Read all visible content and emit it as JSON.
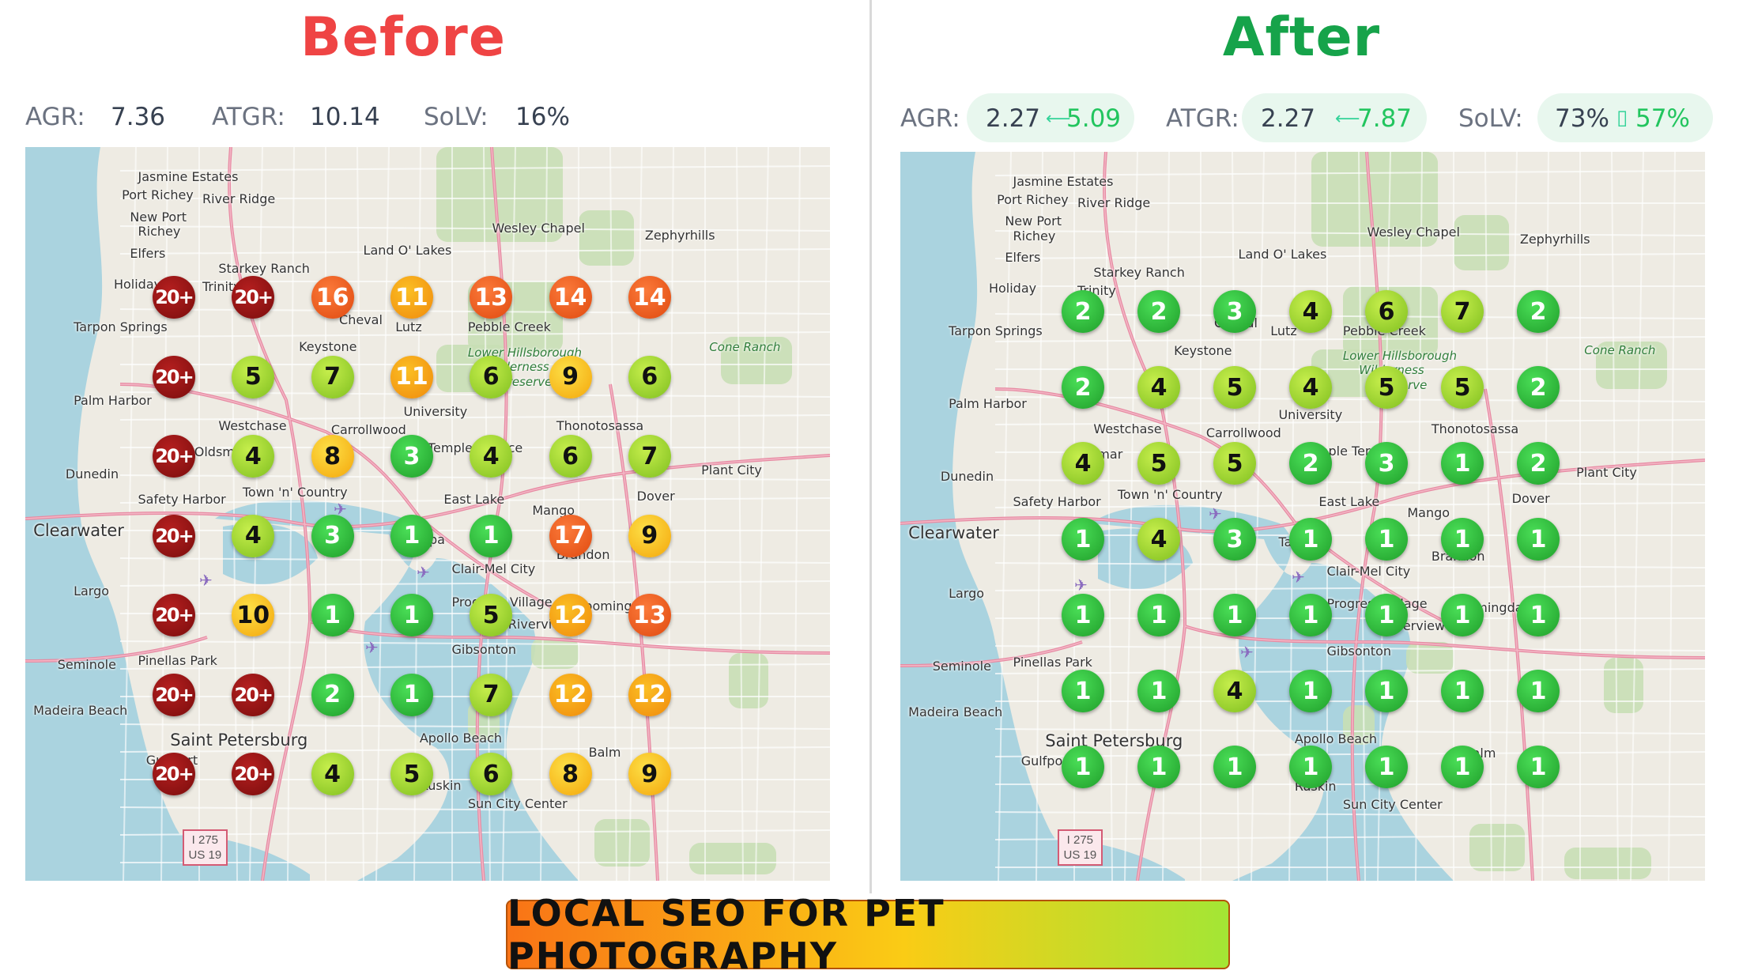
{
  "before": {
    "title": "Before",
    "metrics": {
      "agr_label": "AGR:",
      "agr_value": "7.36",
      "atgr_label": "ATGR:",
      "atgr_value": "10.14",
      "solv_label": "SoLV:",
      "solv_value": "16%"
    },
    "grid": [
      [
        "20+",
        "20+",
        "16",
        "11",
        "13",
        "14",
        "14"
      ],
      [
        "20+",
        "5",
        "7",
        "11",
        "6",
        "9",
        "6"
      ],
      [
        "20+",
        "4",
        "8",
        "3",
        "4",
        "6",
        "7"
      ],
      [
        "20+",
        "4",
        "3",
        "1",
        "1",
        "17",
        "9"
      ],
      [
        "20+",
        "10",
        "1",
        "1",
        "5",
        "12",
        "13"
      ],
      [
        "20+",
        "20+",
        "2",
        "1",
        "7",
        "12",
        "12"
      ],
      [
        "20+",
        "20+",
        "4",
        "5",
        "6",
        "8",
        "9"
      ]
    ]
  },
  "after": {
    "title": "After",
    "metrics": {
      "agr_label": "AGR:",
      "agr_before": "2.27",
      "agr_arrow": "⟵",
      "agr_after": "5.09",
      "atgr_label": "ATGR:",
      "atgr_before": "2.27",
      "atgr_arrow": "⟵",
      "atgr_after": "7.87",
      "solv_label": "SoLV:",
      "solv_before": "73%",
      "solv_arrow": "▯",
      "solv_after": "57%"
    },
    "grid": [
      [
        "2",
        "2",
        "3",
        "4",
        "6",
        "7",
        "2"
      ],
      [
        "2",
        "4",
        "5",
        "4",
        "5",
        "5",
        "2"
      ],
      [
        "4",
        "5",
        "5",
        "2",
        "3",
        "1",
        "2"
      ],
      [
        "1",
        "4",
        "3",
        "1",
        "1",
        "1",
        "1"
      ],
      [
        "1",
        "1",
        "1",
        "1",
        "1",
        "1",
        "1"
      ],
      [
        "1",
        "1",
        "4",
        "1",
        "1",
        "1",
        "1"
      ],
      [
        "1",
        "1",
        "1",
        "1",
        "1",
        "1",
        "1"
      ]
    ]
  },
  "places": [
    "Jasmine Estates",
    "Port Richey",
    "River Ridge",
    "New Port",
    "Richey",
    "Elfers",
    "Wesley Chapel",
    "Zephyrhills",
    "Land O' Lakes",
    "Starkey Ranch",
    "Holiday",
    "Trinity",
    "Cheval",
    "Lutz",
    "Pebble Creek",
    "Tarpon Springs",
    "Keystone",
    "Lower Hillsborough",
    "Wilderness",
    "Preserve",
    "Cone Ranch",
    "Palm Harbor",
    "University",
    "Westchase",
    "Carrollwood",
    "Thonotosassa",
    "Oldsmar",
    "Temple Terrace",
    "Dunedin",
    "Town 'n' Country",
    "Plant City",
    "Safety Harbor",
    "East Lake",
    "Dover",
    "Mango",
    "Clearwater",
    "Tampa",
    "Brandon",
    "Clair-Mel City",
    "Largo",
    "Progress Village",
    "Bloomingdale",
    "Riverview",
    "Gibsonton",
    "Seminole",
    "Pinellas Park",
    "Madeira Beach",
    "Saint Petersburg",
    "Apollo Beach",
    "Balm",
    "Ruskin",
    "Sun City Center",
    "Gulfport"
  ],
  "shield": {
    "line1": "I 275",
    "line2": "US 19"
  },
  "banner": "LOCAL SEO FOR PET PHOTOGRAPHY"
}
